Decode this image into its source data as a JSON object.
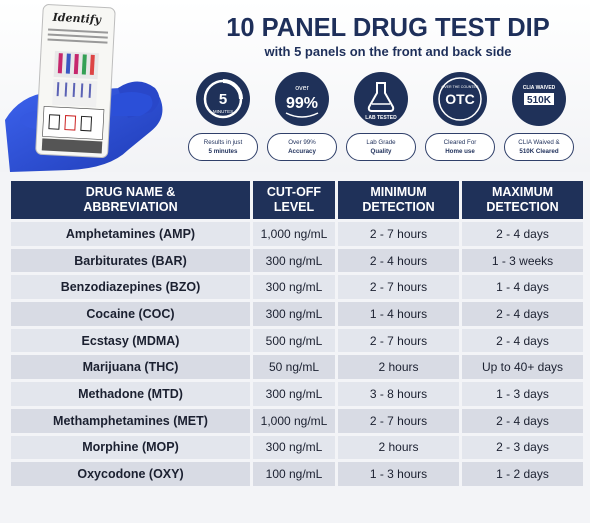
{
  "title": "10 PANEL DRUG TEST DIP",
  "subtitle": "with 5 panels on the front and back side",
  "brand": "Identify",
  "badges": [
    {
      "icon": "clock-5-minutes-icon",
      "icon_text": "5",
      "icon_sub": "MINUTES",
      "cap1": "Results in just",
      "cap2": "5 minutes"
    },
    {
      "icon": "accuracy-99-icon",
      "icon_text": "99%",
      "icon_sub": "over",
      "cap1": "Over 99%",
      "cap2": "Accuracy"
    },
    {
      "icon": "lab-flask-icon",
      "icon_text": "LAB TESTED",
      "icon_sub": "",
      "cap1": "Lab Grade",
      "cap2": "Quality"
    },
    {
      "icon": "otc-icon",
      "icon_text": "OTC",
      "icon_sub": "OVER THE COUNTER",
      "cap1": "Cleared For",
      "cap2": "Home use"
    },
    {
      "icon": "clia-icon",
      "icon_text": "510K",
      "icon_sub": "CLIA WAIVED",
      "cap1": "CLIA Waived &",
      "cap2": "510K Cleared"
    }
  ],
  "table": {
    "headers": [
      [
        "DRUG NAME &",
        "ABBREVIATION"
      ],
      [
        "CUT-OFF",
        "LEVEL"
      ],
      [
        "MINIMUM",
        "DETECTION"
      ],
      [
        "MAXIMUM",
        "DETECTION"
      ]
    ],
    "rows": [
      [
        "Amphetamines (AMP)",
        "1,000 ng/mL",
        "2 - 7 hours",
        "2 - 4 days"
      ],
      [
        "Barbiturates (BAR)",
        "300 ng/mL",
        "2 - 4 hours",
        "1 - 3 weeks"
      ],
      [
        "Benzodiazepines (BZO)",
        "300 ng/mL",
        "2 - 7 hours",
        "1 - 4 days"
      ],
      [
        "Cocaine (COC)",
        "300 ng/mL",
        "1 - 4 hours",
        "2 - 4 days"
      ],
      [
        "Ecstasy (MDMA)",
        "500 ng/mL",
        "2 - 7 hours",
        "2 - 4 days"
      ],
      [
        "Marijuana (THC)",
        "50 ng/mL",
        "2 hours",
        "Up to 40+ days"
      ],
      [
        "Methadone (MTD)",
        "300 ng/mL",
        "3 - 8 hours",
        "1 - 3 days"
      ],
      [
        "Methamphetamines (MET)",
        "1,000 ng/mL",
        "2 - 7 hours",
        "2 - 4 days"
      ],
      [
        "Morphine (MOP)",
        "300 ng/mL",
        "2 hours",
        "2 - 3 days"
      ],
      [
        "Oxycodone (OXY)",
        "100 ng/mL",
        "1 - 3 hours",
        "1 - 2 days"
      ]
    ]
  },
  "colors": {
    "navy": "#1f3159",
    "row_light": "#e3e6ed",
    "row_dark": "#d8dbe4",
    "glove": "#2b4fd8"
  }
}
